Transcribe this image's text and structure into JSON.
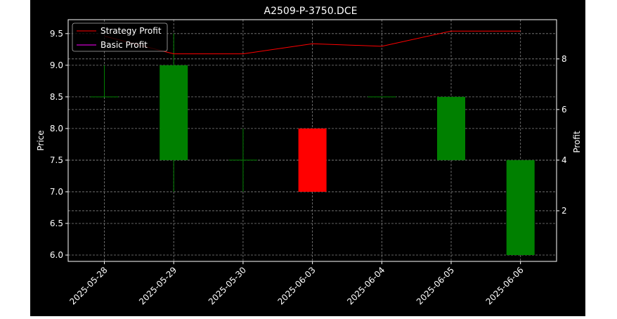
{
  "chart_data": {
    "type": "candlestick",
    "title": "A2509-P-3750.DCE",
    "ylabel": "Price",
    "y2label": "Profit",
    "categories": [
      "2025-05-28",
      "2025-05-29",
      "2025-05-30",
      "2025-06-03",
      "2025-06-04",
      "2025-06-05",
      "2025-06-06"
    ],
    "candles": [
      {
        "open": 8.5,
        "high": 9.0,
        "low": 8.5,
        "close": 8.5
      },
      {
        "open": 7.5,
        "high": 9.5,
        "low": 7.0,
        "close": 9.0
      },
      {
        "open": 7.5,
        "high": 8.0,
        "low": 7.0,
        "close": 7.5
      },
      {
        "open": 8.0,
        "high": 8.0,
        "low": 7.0,
        "close": 7.0
      },
      {
        "open": 8.5,
        "high": 8.5,
        "low": 8.5,
        "close": 8.5
      },
      {
        "open": 7.5,
        "high": 8.5,
        "low": 7.5,
        "close": 8.5
      },
      {
        "open": 6.0,
        "high": 7.5,
        "low": 6.0,
        "close": 7.5
      }
    ],
    "series": [
      {
        "name": "Strategy Profit",
        "axis": "right",
        "color": "#ff0000",
        "values": [
          8.9,
          8.2,
          8.2,
          8.6,
          8.5,
          9.1,
          9.1
        ]
      },
      {
        "name": "Basic Profit",
        "axis": "right",
        "color": "#ff00ff",
        "values": [
          0.0,
          0.0,
          0.0,
          0.0,
          0.0,
          0.0,
          0.0
        ]
      }
    ],
    "ylim": [
      5.9,
      9.72
    ],
    "y2lim": [
      0.0,
      9.55
    ],
    "yticks": [
      6.0,
      6.5,
      7.0,
      7.5,
      8.0,
      8.5,
      9.0,
      9.5
    ],
    "y2ticks": [
      2,
      4,
      6,
      8
    ],
    "grid": true,
    "legend": "top-left",
    "colors": {
      "up": "#008000",
      "down": "#ff0000",
      "grid": "#808080",
      "text": "#ffffff",
      "background": "#000000"
    }
  }
}
